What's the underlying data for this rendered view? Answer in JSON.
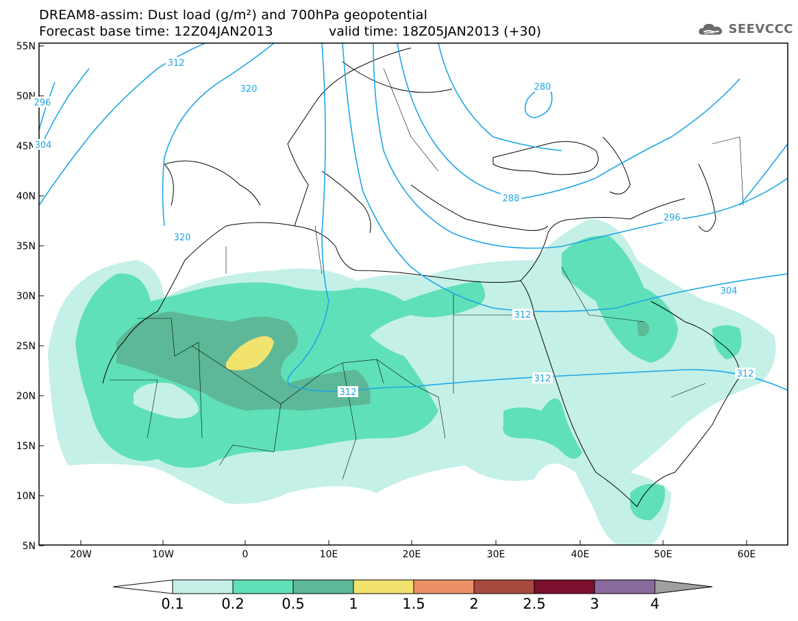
{
  "header": {
    "title_line1": "DREAM8-assim: Dust load (g/m²) and 700hPa geopotential",
    "title_line2_left": "Forecast base time: 12Z04JAN2013",
    "title_line2_right": "valid time: 18Z05JAN2013 (+30)"
  },
  "logo": {
    "text": "SEEVCCC",
    "icon": "cloud-icon"
  },
  "map": {
    "lon_labels": [
      "20W",
      "10W",
      "0",
      "10E",
      "20E",
      "30E",
      "40E",
      "50E",
      "60E"
    ],
    "lat_labels": [
      "55N",
      "50N",
      "45N",
      "40N",
      "35N",
      "30N",
      "25N",
      "20N",
      "15N",
      "10N",
      "5N"
    ],
    "contour_labels": [
      "312",
      "320",
      "296",
      "304",
      "280",
      "288",
      "296",
      "304",
      "320",
      "312",
      "312",
      "312",
      "312"
    ]
  },
  "colorbar": {
    "ticks": [
      "0.1",
      "0.2",
      "0.5",
      "1",
      "1.5",
      "2",
      "2.5",
      "3",
      "4"
    ],
    "colors": [
      "#c4f0e7",
      "#5fe0b8",
      "#5cb896",
      "#f2e26e",
      "#ec9167",
      "#a84a3e",
      "#7a0f2e",
      "#8a6a9c",
      "#a0a0a0"
    ]
  }
}
